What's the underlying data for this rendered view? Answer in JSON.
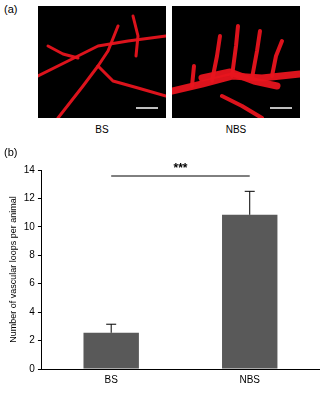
{
  "panel_a": {
    "label": "(a)",
    "images": [
      {
        "caption": "BS"
      },
      {
        "caption": "NBS"
      }
    ]
  },
  "chart_data": {
    "type": "bar",
    "panel_label": "(b)",
    "categories": [
      "BS",
      "NBS"
    ],
    "values": [
      2.55,
      10.85
    ],
    "errors": [
      0.6,
      1.65
    ],
    "color": "#595959",
    "y_label": "Number of vascular loops per animal",
    "ylim": [
      0,
      14
    ],
    "yticks": [
      0,
      2,
      4,
      6,
      8,
      10,
      12,
      14
    ],
    "grid": false,
    "annotations": [
      {
        "text": "***",
        "between": [
          "BS",
          "NBS"
        ]
      }
    ]
  }
}
